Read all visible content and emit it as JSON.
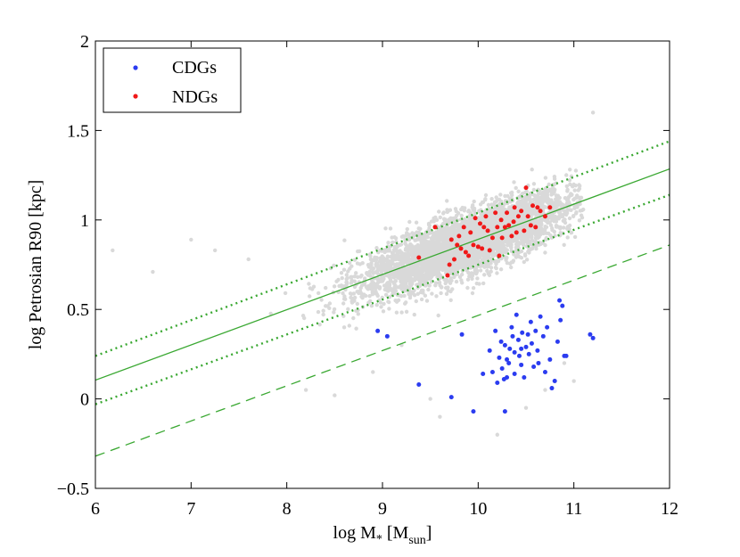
{
  "chart_data": {
    "type": "scatter",
    "title": "",
    "xlabel_main": "log M",
    "xlabel_sub1": "*",
    "xlabel_mid": " [M",
    "xlabel_sub2": "sun",
    "xlabel_end": "]",
    "ylabel": "log Petrosian R90 [kpc]",
    "xlim": [
      6,
      12
    ],
    "ylim": [
      -0.5,
      2
    ],
    "xticks": [
      6,
      7,
      8,
      9,
      10,
      11,
      12
    ],
    "yticks": [
      -0.5,
      0,
      0.5,
      1,
      1.5,
      2
    ],
    "ytick_labels": [
      "−0.5",
      "0",
      "0.5",
      "1",
      "1.5",
      "2"
    ],
    "legend": {
      "position": "top-left",
      "entries": [
        {
          "label": "CDGs",
          "color": "#2b3cf0"
        },
        {
          "label": "NDGs",
          "color": "#f01818"
        }
      ]
    },
    "colors": {
      "background_points": "#d9d9d9",
      "fit_lines": "#3aa832",
      "cdg": "#2b3cf0",
      "ndg": "#f01818"
    },
    "lines": [
      {
        "name": "fit",
        "style": "solid",
        "x": [
          6,
          12
        ],
        "y": [
          0.105,
          1.285
        ]
      },
      {
        "name": "upper",
        "style": "dotted",
        "x": [
          6,
          12
        ],
        "y": [
          0.24,
          1.44
        ]
      },
      {
        "name": "lower",
        "style": "dotted",
        "x": [
          6,
          12
        ],
        "y": [
          -0.03,
          1.14
        ]
      },
      {
        "name": "cut",
        "style": "dashed",
        "x": [
          6,
          12
        ],
        "y": [
          -0.32,
          0.86
        ]
      }
    ],
    "background_cloud": {
      "description_count": 6000,
      "relation": {
        "slope": 0.197,
        "intercept": -1.08,
        "scatter": 0.085
      },
      "x_center": 9.9,
      "x_spread": 0.55
    },
    "background_outliers": {
      "x": [
        6.18,
        6.6,
        7.0,
        7.25,
        7.6,
        11.2,
        8.5,
        8.2,
        9.6,
        10.5,
        11.0,
        8.9,
        9.2,
        10.9,
        10.7,
        9.5,
        10.2,
        8.6
      ],
      "y": [
        0.83,
        0.71,
        0.89,
        0.83,
        0.78,
        1.6,
        0.02,
        0.05,
        -0.1,
        -0.05,
        0.1,
        0.15,
        0.3,
        0.2,
        0.05,
        0.0,
        -0.2,
        0.4
      ]
    },
    "series": [
      {
        "name": "CDGs",
        "x": [
          8.95,
          9.05,
          9.38,
          9.72,
          9.83,
          9.95,
          10.05,
          10.12,
          10.15,
          10.18,
          10.2,
          10.22,
          10.24,
          10.25,
          10.27,
          10.28,
          10.3,
          10.3,
          10.32,
          10.33,
          10.35,
          10.36,
          10.38,
          10.38,
          10.4,
          10.42,
          10.43,
          10.45,
          10.46,
          10.48,
          10.5,
          10.52,
          10.53,
          10.55,
          10.56,
          10.58,
          10.6,
          10.62,
          10.63,
          10.65,
          10.68,
          10.7,
          10.72,
          10.75,
          10.77,
          10.8,
          10.83,
          10.85,
          10.86,
          10.88,
          10.9,
          10.92,
          11.17,
          11.2,
          10.28,
          10.45
        ],
        "y": [
          0.38,
          0.35,
          0.08,
          0.01,
          0.36,
          -0.07,
          0.14,
          0.27,
          0.15,
          0.38,
          0.09,
          0.23,
          0.32,
          0.17,
          0.11,
          0.3,
          0.22,
          0.12,
          0.2,
          0.28,
          0.4,
          0.35,
          0.14,
          0.26,
          0.47,
          0.33,
          0.24,
          0.19,
          0.37,
          0.12,
          0.29,
          0.36,
          0.25,
          0.43,
          0.31,
          0.18,
          0.38,
          0.27,
          0.2,
          0.46,
          0.35,
          0.15,
          0.4,
          0.22,
          0.06,
          0.1,
          0.32,
          0.55,
          0.44,
          0.52,
          0.24,
          0.24,
          0.36,
          0.34,
          -0.07,
          0.28
        ]
      },
      {
        "name": "NDGs",
        "x": [
          9.38,
          9.55,
          9.68,
          9.7,
          9.72,
          9.75,
          9.78,
          9.8,
          9.82,
          9.85,
          9.87,
          9.9,
          9.92,
          9.95,
          9.97,
          10.0,
          10.02,
          10.04,
          10.06,
          10.08,
          10.1,
          10.12,
          10.15,
          10.18,
          10.2,
          10.22,
          10.24,
          10.25,
          10.28,
          10.3,
          10.32,
          10.35,
          10.37,
          10.38,
          10.4,
          10.42,
          10.45,
          10.48,
          10.5,
          10.52,
          10.55,
          10.57,
          10.6,
          10.62,
          10.65,
          10.7,
          10.75
        ],
        "y": [
          0.79,
          0.96,
          0.69,
          0.75,
          0.89,
          0.78,
          0.86,
          0.91,
          0.84,
          0.96,
          0.82,
          0.8,
          0.93,
          0.86,
          1.01,
          0.85,
          0.98,
          0.84,
          0.96,
          1.02,
          0.94,
          0.83,
          0.9,
          1.04,
          0.96,
          0.8,
          1.0,
          0.9,
          0.96,
          1.04,
          0.97,
          0.91,
          0.99,
          1.07,
          0.93,
          1.02,
          1.05,
          0.94,
          1.18,
          1.02,
          0.97,
          1.08,
          0.96,
          1.07,
          1.05,
          1.02,
          1.07
        ]
      }
    ]
  }
}
